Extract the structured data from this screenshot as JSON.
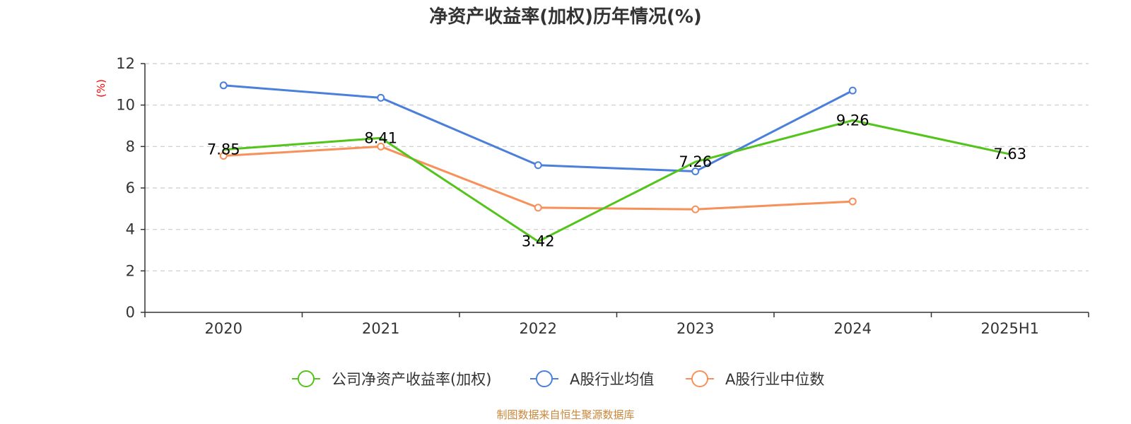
{
  "chart_data": {
    "type": "line",
    "title": "净资产收益率(加权)历年情况(%)",
    "ylabel": "(%)",
    "xlabel": "",
    "categories": [
      "2020",
      "2021",
      "2022",
      "2023",
      "2024",
      "2025H1"
    ],
    "ylim": [
      0,
      12
    ],
    "yticks": [
      0,
      2,
      4,
      6,
      8,
      10,
      12
    ],
    "grid": true,
    "legend_position": "bottom-center",
    "series": [
      {
        "name": "公司净资产收益率(加权)",
        "color": "#52c41a",
        "values": [
          7.85,
          8.41,
          3.42,
          7.26,
          9.26,
          7.63
        ],
        "labels": [
          "7.85",
          "8.41",
          "3.42",
          "7.26",
          "9.26",
          "7.63"
        ],
        "show_labels": true
      },
      {
        "name": "A股行业均值",
        "color": "#4a7fdc",
        "values": [
          10.95,
          10.35,
          7.1,
          6.8,
          10.7,
          null
        ],
        "show_labels": false
      },
      {
        "name": "A股行业中位数",
        "color": "#f79059",
        "values": [
          7.55,
          8.0,
          5.05,
          4.97,
          5.35,
          null
        ],
        "show_labels": false
      }
    ]
  },
  "source": "制图数据来自恒生聚源数据库"
}
